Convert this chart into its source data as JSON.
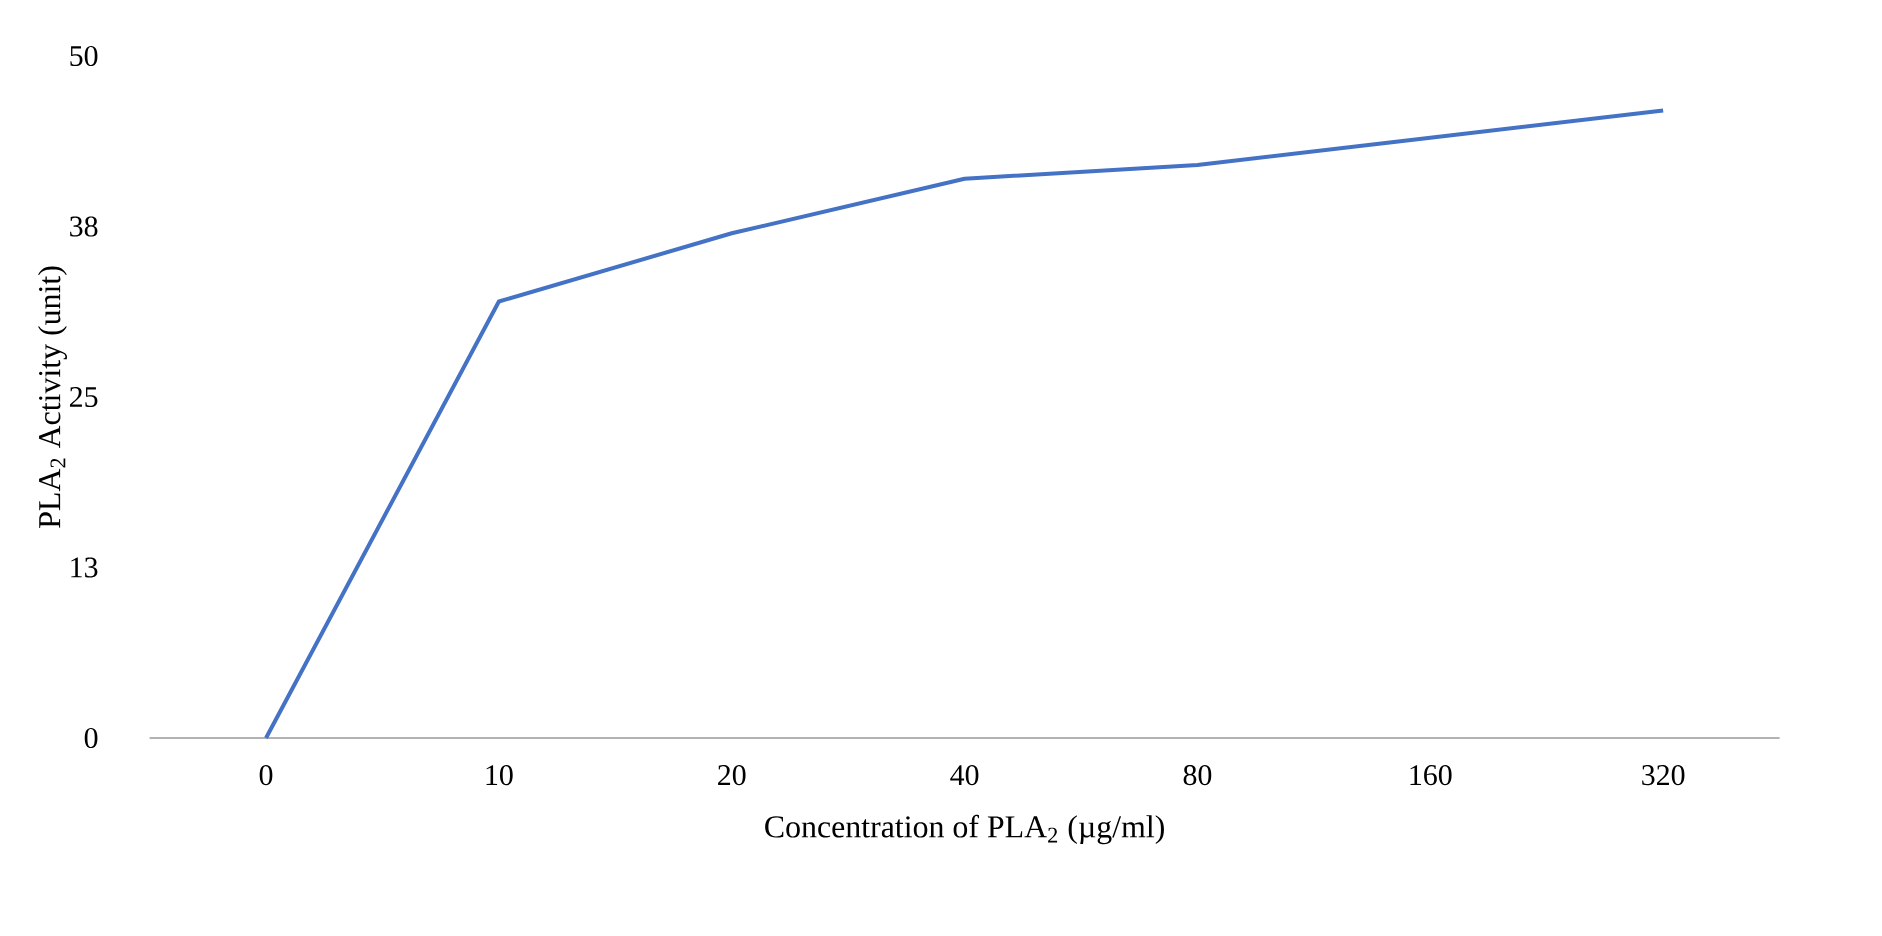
{
  "chart_data": {
    "type": "line",
    "xlabel": "Concentration of PLA$_{2}$ (µg/ml)",
    "ylabel": "PLA$_{2}$ Activity  (unit)",
    "categories": [
      "0",
      "10",
      "20",
      "40",
      "80",
      "160",
      "320"
    ],
    "series": [
      {
        "color": "#4472c4",
        "values": [
          0,
          32,
          37,
          41,
          42,
          44,
          46
        ]
      }
    ],
    "ylim": [
      0,
      50
    ],
    "yticks": [
      0,
      {
        "value": 12.5,
        "label": "13"
      },
      25,
      {
        "value": 37.5,
        "label": "38"
      },
      50
    ],
    "grid": false,
    "legend": false,
    "marker": "none",
    "line_style": "solid"
  }
}
